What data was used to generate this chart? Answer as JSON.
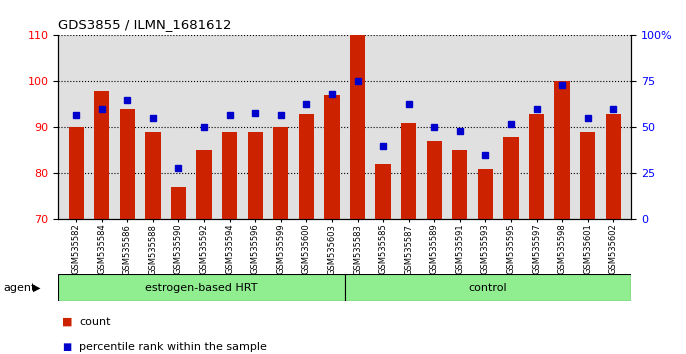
{
  "title": "GDS3855 / ILMN_1681612",
  "samples": [
    "GSM535582",
    "GSM535584",
    "GSM535586",
    "GSM535588",
    "GSM535590",
    "GSM535592",
    "GSM535594",
    "GSM535596",
    "GSM535599",
    "GSM535600",
    "GSM535603",
    "GSM535583",
    "GSM535585",
    "GSM535587",
    "GSM535589",
    "GSM535591",
    "GSM535593",
    "GSM535595",
    "GSM535597",
    "GSM535598",
    "GSM535601",
    "GSM535602"
  ],
  "bar_heights": [
    90,
    98,
    94,
    89,
    77,
    85,
    89,
    89,
    90,
    93,
    97,
    110,
    82,
    91,
    87,
    85,
    81,
    88,
    93,
    100,
    89,
    93
  ],
  "percentile_ranks": [
    57,
    60,
    65,
    55,
    28,
    50,
    57,
    58,
    57,
    63,
    68,
    75,
    40,
    63,
    50,
    48,
    35,
    52,
    60,
    73,
    55,
    60
  ],
  "group1_label": "estrogen-based HRT",
  "group2_label": "control",
  "group1_count": 11,
  "group2_count": 11,
  "bar_color": "#CC2200",
  "dot_color": "#0000CC",
  "ylim_left": [
    70,
    110
  ],
  "ylim_right": [
    0,
    100
  ],
  "yticks_left": [
    70,
    80,
    90,
    100,
    110
  ],
  "yticks_right": [
    0,
    25,
    50,
    75,
    100
  ],
  "bg_color": "#E0E0E0",
  "group_bg_color": "#90EE90",
  "legend_count_label": "count",
  "legend_pct_label": "percentile rank within the sample",
  "agent_label": "agent"
}
